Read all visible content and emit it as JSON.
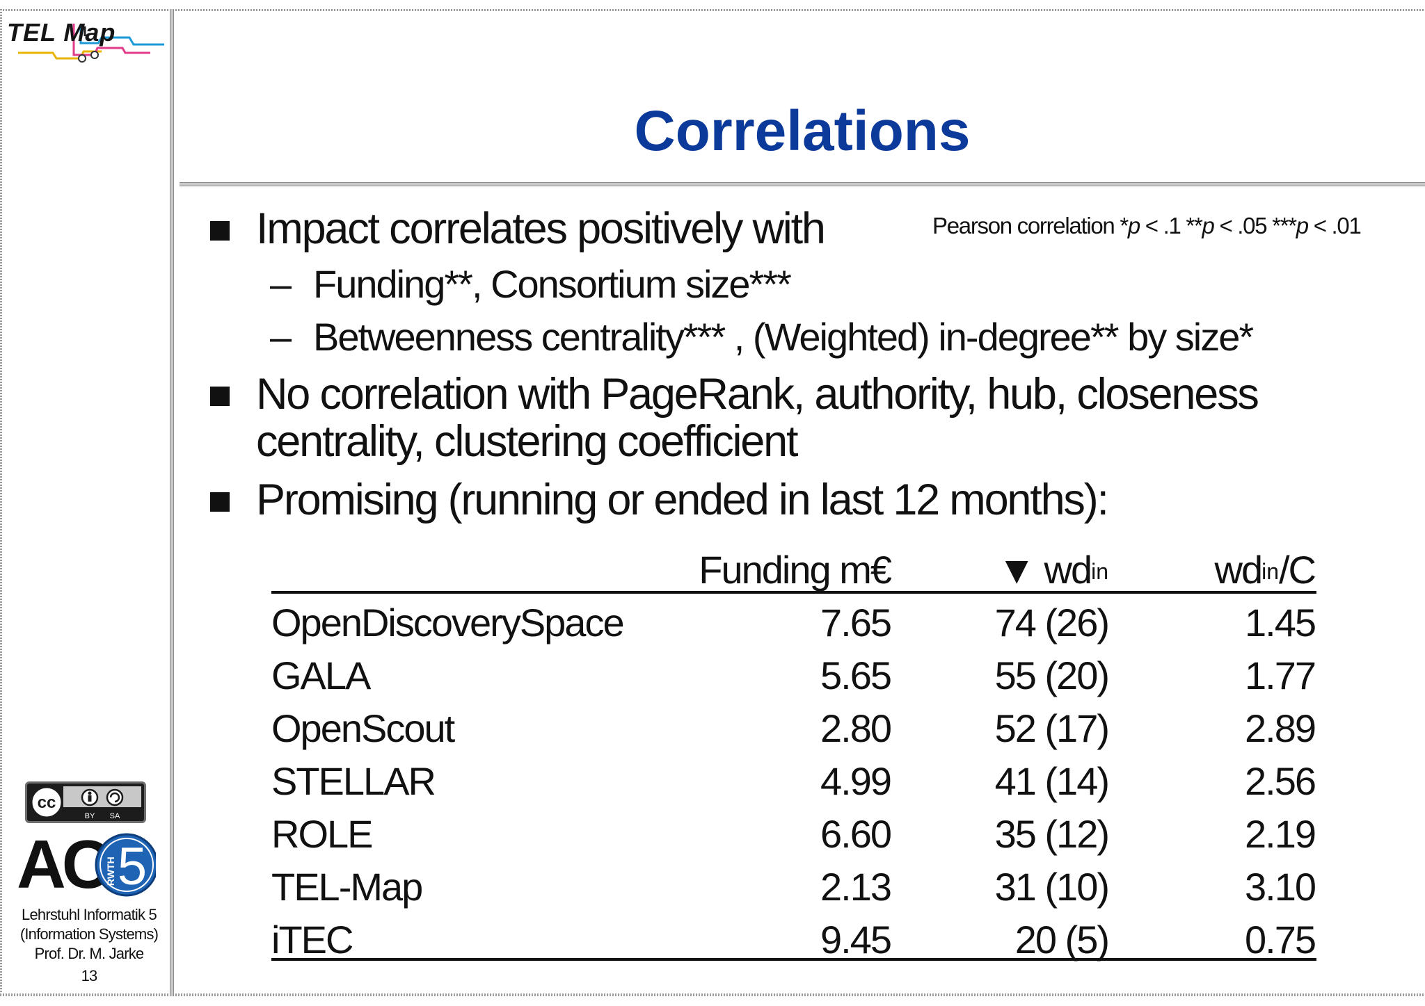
{
  "logo": {
    "text": "TEL Map"
  },
  "title": "Correlations",
  "note": {
    "prefix": "Pearson correlation *",
    "p1": "p",
    "t1": " < .1   **",
    "p2": "p",
    "t2": " < .05   ***",
    "p3": "p",
    "t3": " < .01"
  },
  "bullets": [
    "Impact correlates positively with",
    "No correlation with PageRank, authority, hub, closeness",
    "centrality, clustering coefficient",
    "Promising (running or ended in last 12 months):"
  ],
  "subbullets": {
    "dash": "–",
    "items": [
      "Funding**,   Consortium size***",
      "Betweenness centrality*** ,   (Weighted) in-degree** by size*"
    ]
  },
  "table": {
    "headers": {
      "funding": "Funding m€",
      "wd_prefix": "▼ wd",
      "wd_sup": "in",
      "wdc_prefix": "wd",
      "wdc_sup": "in",
      "wdc_suffix": "/C"
    },
    "rows": [
      {
        "name": "OpenDiscoverySpace",
        "funding": "7.65",
        "wd": "74 (26)",
        "wdc": "1.45"
      },
      {
        "name": "GALA",
        "funding": "5.65",
        "wd": "55 (20)",
        "wdc": "1.77"
      },
      {
        "name": "OpenScout",
        "funding": "2.80",
        "wd": "52 (17)",
        "wdc": "2.89"
      },
      {
        "name": "STELLAR",
        "funding": "4.99",
        "wd": "41 (14)",
        "wdc": "2.56"
      },
      {
        "name": "ROLE",
        "funding": "6.60",
        "wd": "35 (12)",
        "wdc": "2.19"
      },
      {
        "name": "TEL-Map",
        "funding": "2.13",
        "wd": "31 (10)",
        "wdc": "3.10"
      },
      {
        "name": "iTEC",
        "funding": "9.45",
        "wd": "20   (5)",
        "wdc": "0.75"
      }
    ]
  },
  "license": {
    "cc": "cc",
    "by": "BY",
    "sa": "SA"
  },
  "ac5": {
    "text": "AC",
    "number": "5",
    "rwth": "RWTH"
  },
  "footer": {
    "line1": "Lehrstuhl Informatik 5",
    "line2": "(Information Systems)",
    "line3": "Prof. Dr. M. Jarke",
    "page": "13"
  },
  "colors": {
    "title": "#0b3a9a",
    "ac5_circle": "#1f63b4"
  }
}
